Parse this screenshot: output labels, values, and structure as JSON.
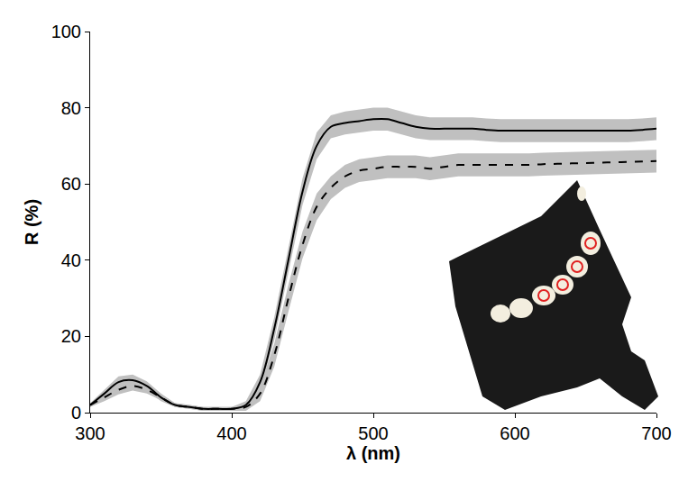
{
  "chart_data": {
    "type": "line",
    "x_label": "λ (nm)",
    "y_label": "R (%)",
    "x": [
      300,
      310,
      320,
      330,
      340,
      350,
      360,
      370,
      380,
      390,
      400,
      410,
      420,
      430,
      440,
      450,
      460,
      470,
      480,
      490,
      500,
      510,
      520,
      530,
      540,
      550,
      560,
      570,
      580,
      590,
      600,
      610,
      620,
      630,
      640,
      650,
      660,
      670,
      680,
      690,
      700
    ],
    "series": [
      {
        "color": "#000000",
        "line_style": "solid",
        "band_color": "#c0c0c0",
        "values": [
          2,
          5,
          8,
          8.5,
          7,
          4,
          2,
          1.5,
          1,
          1,
          1,
          2,
          8,
          22,
          40,
          58,
          70,
          75,
          76,
          76.5,
          77,
          77,
          76,
          75,
          74.5,
          74.5,
          74.5,
          74.5,
          74.2,
          74,
          74,
          74,
          74,
          74,
          74,
          74,
          74,
          74,
          74,
          74.2,
          74.5
        ],
        "error": [
          0.5,
          1,
          1.5,
          1.5,
          1.2,
          1,
          0.5,
          0.5,
          0.5,
          0.5,
          0.5,
          1,
          2,
          3,
          3.5,
          3.5,
          3.5,
          3,
          3,
          3,
          3,
          3,
          3,
          3,
          3,
          3,
          3,
          3,
          3,
          3,
          3,
          3,
          3,
          3,
          3,
          3,
          3,
          3,
          3,
          3,
          3
        ]
      },
      {
        "color": "#000000",
        "line_style": "dash",
        "band_color": "#c0c0c0",
        "values": [
          2,
          4,
          6,
          7,
          6,
          4,
          2,
          1.5,
          1,
          1,
          1,
          1.5,
          5,
          15,
          30,
          44,
          54,
          59,
          62,
          63.5,
          64,
          64.5,
          64.5,
          64.5,
          64,
          64.5,
          65,
          65,
          65,
          65,
          65,
          65,
          65.2,
          65.3,
          65.4,
          65.5,
          65.6,
          65.7,
          65.8,
          65.9,
          66
        ],
        "error": [
          0.5,
          1,
          1.2,
          1.2,
          1,
          0.8,
          0.5,
          0.5,
          0.5,
          0.5,
          0.5,
          1,
          2,
          3,
          3.5,
          3.5,
          3.5,
          3,
          3,
          3,
          3,
          3,
          3,
          3,
          3,
          3,
          3,
          3,
          3,
          3,
          3,
          3,
          3,
          3,
          3,
          3,
          3,
          3,
          3,
          3,
          3
        ]
      }
    ],
    "xlim": [
      300,
      700
    ],
    "ylim": [
      0,
      100
    ],
    "xticks": [
      300,
      400,
      500,
      600,
      700
    ],
    "yticks": [
      0,
      20,
      40,
      60,
      80,
      100
    ],
    "grid": false
  }
}
